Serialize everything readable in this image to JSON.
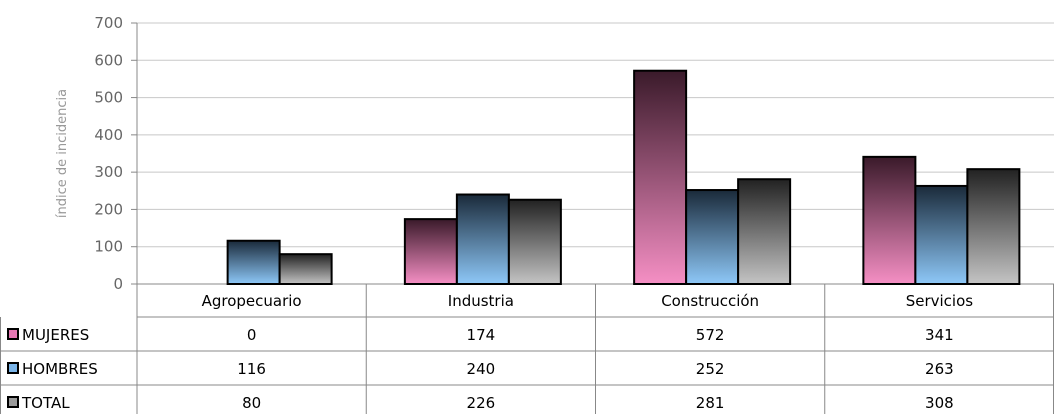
{
  "chart_data": {
    "type": "bar",
    "ylabel": "índice de incidencia",
    "ylim": [
      0,
      700
    ],
    "yticks": [
      0,
      100,
      200,
      300,
      400,
      500,
      600,
      700
    ],
    "grid": true,
    "categories": [
      "Agropecuario",
      "Industria",
      "Construcción",
      "Servicios"
    ],
    "series": [
      {
        "name": "MUJERES",
        "values": [
          0,
          174,
          572,
          341
        ],
        "color_top": "#3a1a2a",
        "color_bottom": "#f58fc4",
        "legend_color": "#e678b4"
      },
      {
        "name": "HOMBRES",
        "values": [
          116,
          240,
          252,
          263
        ],
        "color_top": "#1a2a3a",
        "color_bottom": "#8ec8f8",
        "legend_color": "#7ab4e8"
      },
      {
        "name": "TOTAL",
        "values": [
          80,
          226,
          281,
          308
        ],
        "color_top": "#222222",
        "color_bottom": "#c4c4c4",
        "legend_color": "#9a9a9a"
      }
    ],
    "data_table": true,
    "table_values": [
      [
        "0",
        "174",
        "572",
        "341"
      ],
      [
        "116",
        "240",
        "252",
        "263"
      ],
      [
        "80",
        "226",
        "281",
        "308"
      ]
    ]
  }
}
